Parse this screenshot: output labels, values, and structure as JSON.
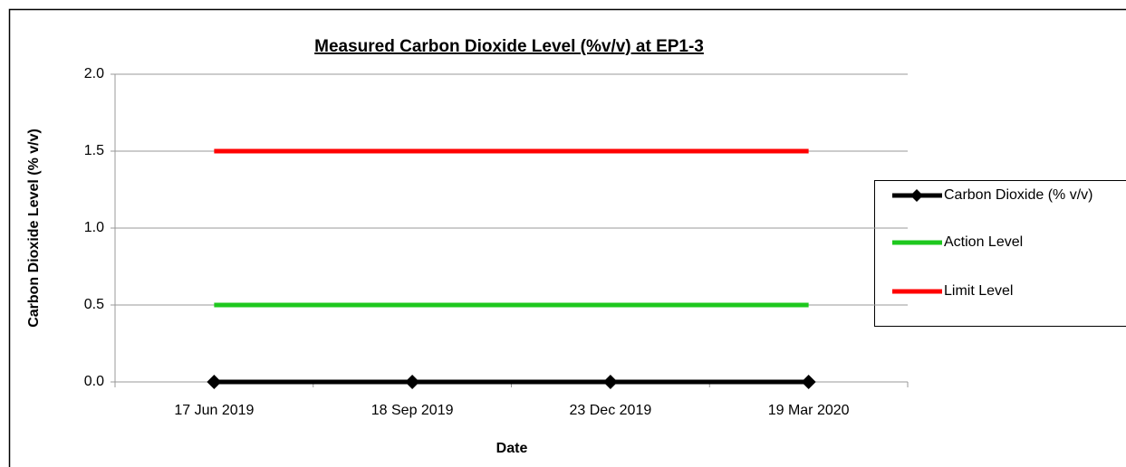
{
  "chart_data": {
    "type": "line",
    "title": "Measured Carbon Dioxide Level (%v/v) at EP1-3",
    "x_label": "Date",
    "y_label": "Carbon Dioxide Level (% v/v)",
    "categories": [
      "17 Jun 2019",
      "18 Sep 2019",
      "23 Dec 2019",
      "19 Mar 2020"
    ],
    "series": [
      {
        "name": "Carbon Dioxide (% v/v)",
        "color": "#000000",
        "marker": "diamond",
        "values": [
          0,
          0,
          0,
          0
        ]
      },
      {
        "name": "Action Level",
        "color": "#1ec81e",
        "values": [
          0.5,
          0.5,
          0.5,
          0.5
        ]
      },
      {
        "name": "Limit Level",
        "color": "#ff0000",
        "values": [
          1.5,
          1.5,
          1.5,
          1.5
        ]
      }
    ],
    "ylim": [
      0,
      2
    ],
    "yticks": [
      {
        "value": 0,
        "label": "0.0"
      },
      0.5,
      {
        "value": 1,
        "label": "1.0"
      },
      1.5,
      {
        "value": 2,
        "label": "2.0"
      }
    ],
    "grid": true,
    "legend": "right"
  }
}
